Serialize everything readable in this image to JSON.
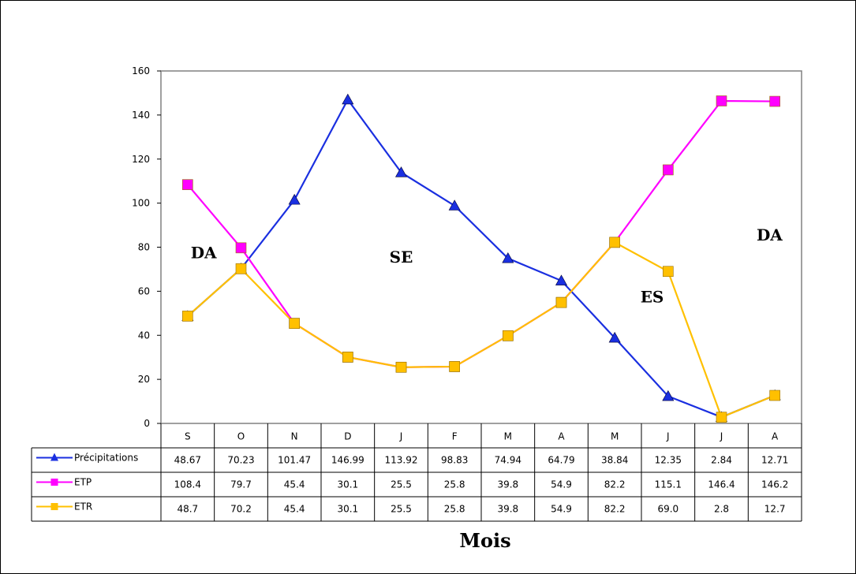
{
  "chart_data": {
    "type": "line",
    "xlabel": "Mois",
    "ylim": [
      0,
      160
    ],
    "yticks": [
      0,
      20,
      40,
      60,
      80,
      100,
      120,
      140,
      160
    ],
    "grid": false,
    "legend": "table-left",
    "categories": [
      "S",
      "O",
      "N",
      "D",
      "J",
      "F",
      "M",
      "A",
      "M",
      "J",
      "J",
      "A"
    ],
    "series": [
      {
        "name": "Précipitations",
        "color": "#1a2fe0",
        "marker": "triangle",
        "values": [
          48.67,
          70.23,
          101.47,
          146.99,
          113.92,
          98.83,
          74.94,
          64.79,
          38.84,
          12.35,
          2.84,
          12.71
        ],
        "labels": [
          "48.67",
          "70.23",
          "101.47",
          "146.99",
          "113.92",
          "98.83",
          "74.94",
          "64.79",
          "38.84",
          "12.35",
          "2.84",
          "12.71"
        ]
      },
      {
        "name": "ETP",
        "color": "#ff00ff",
        "marker": "square",
        "values": [
          108.4,
          79.7,
          45.4,
          30.1,
          25.5,
          25.8,
          39.8,
          54.9,
          82.2,
          115.1,
          146.4,
          146.2
        ],
        "labels": [
          "108.4",
          "79.7",
          "45.4",
          "30.1",
          "25.5",
          "25.8",
          "39.8",
          "54.9",
          "82.2",
          "115.1",
          "146.4",
          "146.2"
        ]
      },
      {
        "name": "ETR",
        "color": "#ffc000",
        "marker": "square",
        "values": [
          48.7,
          70.2,
          45.4,
          30.1,
          25.5,
          25.8,
          39.8,
          54.9,
          82.2,
          69.0,
          2.8,
          12.7
        ],
        "labels": [
          "48.7",
          "70.2",
          "45.4",
          "30.1",
          "25.5",
          "25.8",
          "39.8",
          "54.9",
          "82.2",
          "69.0",
          "2.8",
          "12.7"
        ]
      }
    ],
    "annotations": [
      {
        "text": "DA",
        "x": 0.3,
        "y": 75
      },
      {
        "text": "SE",
        "x": 4.0,
        "y": 73
      },
      {
        "text": "ES",
        "x": 8.7,
        "y": 55
      },
      {
        "text": "DA",
        "x": 10.9,
        "y": 83
      }
    ]
  }
}
